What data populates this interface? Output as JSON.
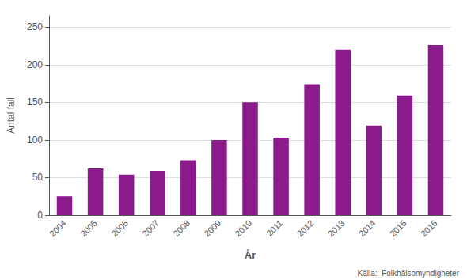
{
  "chart_data": {
    "type": "bar",
    "categories": [
      "2004",
      "2005",
      "2006",
      "2007",
      "2008",
      "2009",
      "2010",
      "2011",
      "2012",
      "2013",
      "2014",
      "2015",
      "2016"
    ],
    "values": [
      25,
      62,
      54,
      59,
      73,
      100,
      150,
      103,
      174,
      220,
      119,
      159,
      226
    ],
    "color": "#8B1A8B",
    "xlabel": "År",
    "ylabel": "Antal fall",
    "ylim": [
      0,
      265
    ],
    "yticks": [
      0,
      50,
      100,
      150,
      200,
      250
    ],
    "grid": true,
    "annotation": "Källa:  Folkhälsomyndigheter"
  }
}
